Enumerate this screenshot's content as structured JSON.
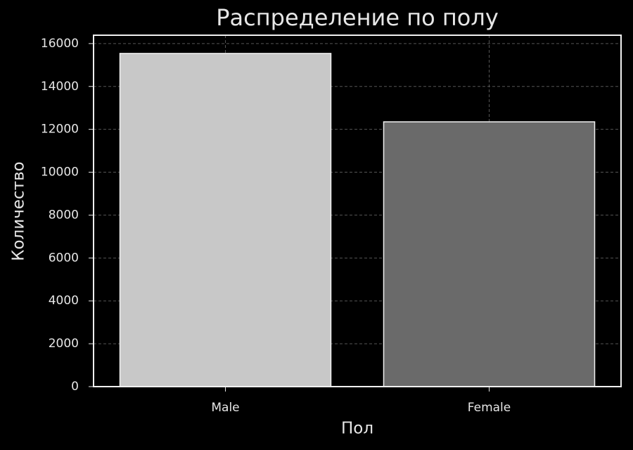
{
  "chart_data": {
    "type": "bar",
    "title": "Распределение по полу",
    "x_label": "Пол",
    "y_label": "Количество",
    "categories": [
      "Male",
      "Female"
    ],
    "values": [
      15540,
      12350
    ],
    "colors": [
      "#c8c8c8",
      "#6a6a6a"
    ],
    "ylim": [
      0,
      16390
    ],
    "yticks": [
      0,
      2000,
      4000,
      6000,
      8000,
      10000,
      12000,
      14000,
      16000
    ],
    "grid": true
  }
}
